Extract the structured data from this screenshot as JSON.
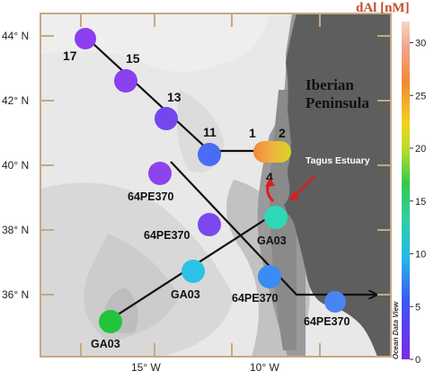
{
  "colorbar": {
    "title": "dAl [nM]",
    "ticks": [
      "30",
      "25",
      "20",
      "15",
      "10",
      "5",
      "0"
    ],
    "tick_values": [
      30,
      25,
      20,
      15,
      10,
      5,
      0
    ],
    "range": [
      0,
      32
    ],
    "colors": [
      "#7e2be0",
      "#3a5cf2",
      "#27b8e8",
      "#2fd0a0",
      "#33c84a",
      "#b8dc2a",
      "#f2d21e",
      "#f48a34",
      "#f2a28a",
      "#f8d4c4"
    ]
  },
  "axes": {
    "lat_labels": [
      "44° N",
      "42° N",
      "40° N",
      "38° N",
      "36° N"
    ],
    "lon_labels": [
      "15° W",
      "10° W"
    ]
  },
  "land_label_line1": "Iberian",
  "land_label_line2": "Peninsula",
  "estuary_label": "Tagus Estuary",
  "watermark": "Ocean Data View",
  "stations": [
    {
      "name": "17",
      "label": "17",
      "color": "#8c3ff0"
    },
    {
      "name": "15",
      "label": "15",
      "color": "#8a40ee"
    },
    {
      "name": "13",
      "label": "13",
      "color": "#7447ee"
    },
    {
      "name": "11",
      "label": "11",
      "color": "#4a6cf4"
    },
    {
      "name": "1",
      "label": "1",
      "color": "#f2a04a"
    },
    {
      "name": "2",
      "label": "2",
      "color": "#e2d02a"
    },
    {
      "name": "4",
      "label": "4",
      "color": "#3ad8b8"
    },
    {
      "name": "64PE370-a",
      "label": "64PE370",
      "color": "#8d44ee"
    },
    {
      "name": "64PE370-b",
      "label": "64PE370",
      "color": "#7d47ee"
    },
    {
      "name": "GA03-a",
      "label": "GA03",
      "color": "#2cc2e6"
    },
    {
      "name": "GA03-b",
      "label": "GA03",
      "color": "#22c43c"
    },
    {
      "name": "64PE370-c",
      "label": "64PE370",
      "color": "#3a8cf4"
    },
    {
      "name": "64PE370-d",
      "label": "64PE370",
      "color": "#4a84f0"
    },
    {
      "name": "GA03-c",
      "label": "GA03",
      "color": "#2fd8b8"
    }
  ]
}
